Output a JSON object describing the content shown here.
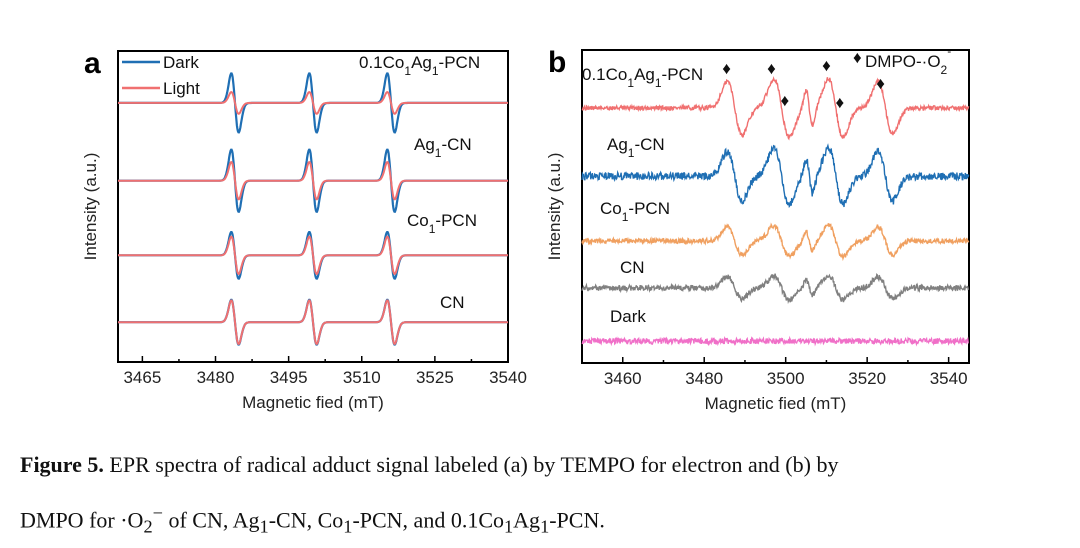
{
  "chart_data": [
    {
      "type": "line",
      "panel_label": "a",
      "xlabel": "Magnetic fied (mT)",
      "ylabel": "Intensity (a.u.)",
      "xlim": [
        3460,
        3540
      ],
      "ylim": [
        0,
        10
      ],
      "xticks": [
        3465,
        3480,
        3495,
        3510,
        3525,
        3540
      ],
      "legend": {
        "placement": "top-left",
        "entries": [
          {
            "name": "Dark",
            "color": "#1f6fb4"
          },
          {
            "name": "Light",
            "color": "#f07070"
          }
        ]
      },
      "line_centers": [
        3484,
        3500,
        3516
      ],
      "line_width": 0.75,
      "samples": [
        {
          "name": "0.1Co1Ag1-PCN",
          "label_main": "0.1Co",
          "label_sub1": "1",
          "label_mid": "Ag",
          "label_sub2": "1",
          "label_end": "-PCN",
          "offset": 8.33,
          "dark_amplitude": 0.95,
          "light_amplitude": 0.35
        },
        {
          "name": "Ag1-CN",
          "label_main": "Ag",
          "label_sub1": "1",
          "label_end": "-CN",
          "offset": 5.83,
          "dark_amplitude": 1.0,
          "light_amplitude": 0.6
        },
        {
          "name": "Co1-PCN",
          "label_main": "Co",
          "label_sub1": "1",
          "label_end": "-PCN",
          "offset": 3.43,
          "dark_amplitude": 0.75,
          "light_amplitude": 0.6
        },
        {
          "name": "CN",
          "label_main": "CN",
          "offset": 1.28,
          "dark_amplitude": 0.72,
          "light_amplitude": 0.7
        }
      ]
    },
    {
      "type": "line",
      "panel_label": "b",
      "xlabel": "Magnetic fied (mT)",
      "ylabel": "Intensity (a.u.)",
      "xlim": [
        3450,
        3545
      ],
      "ylim": [
        0,
        10
      ],
      "xticks": [
        3460,
        3480,
        3500,
        3520,
        3540
      ],
      "marker_legend": {
        "symbol": "♦",
        "text": "DMPO-·O",
        "sub": "2",
        "sup": "-"
      },
      "marker_positions": [
        3485.5,
        3496.5,
        3499.8,
        3510,
        3513.3,
        3523.3
      ],
      "components": [
        {
          "center": 3487.5,
          "width": 1.8,
          "weight": 1.0
        },
        {
          "center": 3499.0,
          "width": 1.9,
          "weight": 1.1
        },
        {
          "center": 3505.8,
          "width": 0.8,
          "weight": 0.7
        },
        {
          "center": 3512.3,
          "width": 1.8,
          "weight": 1.1
        },
        {
          "center": 3524.5,
          "width": 1.8,
          "weight": 1.0
        }
      ],
      "samples": [
        {
          "name": "0.1Co1Ag1-PCN",
          "label_main": "0.1Co",
          "label_sub1": "1",
          "label_mid": "Ag",
          "label_sub2": "1",
          "label_end": "-PCN",
          "color": "#f07070",
          "offset": 8.15,
          "amplitude": 0.85,
          "noise": 0.07
        },
        {
          "name": "Ag1-CN",
          "label_main": "Ag",
          "label_sub1": "1",
          "label_end": "-CN",
          "color": "#1f6fb4",
          "offset": 5.97,
          "amplitude": 0.8,
          "noise": 0.12
        },
        {
          "name": "Co1-PCN",
          "label_main": "Co",
          "label_sub1": "1",
          "label_end": "-PCN",
          "color": "#f0a060",
          "offset": 3.9,
          "amplitude": 0.45,
          "noise": 0.08
        },
        {
          "name": "CN",
          "label_main": "CN",
          "color": "#808080",
          "offset": 2.4,
          "amplitude": 0.35,
          "noise": 0.09
        },
        {
          "name": "Dark",
          "label_main": "Dark",
          "color": "#f070c8",
          "offset": 0.7,
          "amplitude": 0.0,
          "noise": 0.09
        }
      ]
    }
  ],
  "caption": {
    "figure_label": "Figure 5.",
    "line1": " EPR spectra of radical adduct signal labeled (a) by TEMPO for electron and (b) by",
    "line2_a": "DMPO for ·O",
    "line2_sub": "2",
    "line2_sup": "−",
    "line2_b": " of CN, Ag",
    "line2_c": "1",
    "line2_d": "-CN, Co",
    "line2_e": "1",
    "line2_f": "-PCN, and 0.1Co",
    "line2_g": "1",
    "line2_h": "Ag",
    "line2_i": "1",
    "line2_j": "-PCN."
  }
}
